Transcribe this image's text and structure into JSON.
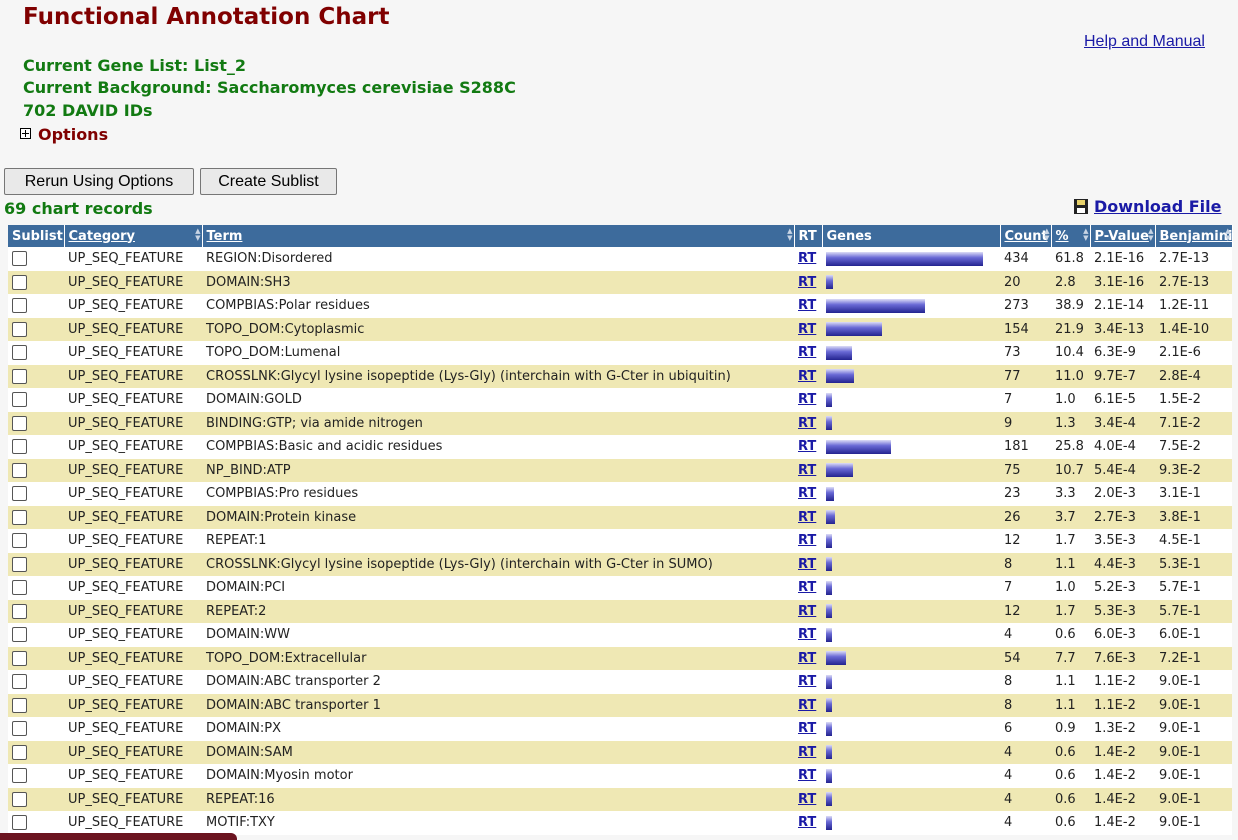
{
  "page": {
    "title": "Functional Annotation Chart",
    "help_link": "Help and Manual",
    "gene_list": "Current Gene List: List_2",
    "background": "Current Background: Saccharomyces cerevisiae S288C",
    "david_ids": "702 DAVID IDs",
    "options_label": "Options"
  },
  "toolbar": {
    "rerun_label": "Rerun Using Options",
    "sublist_label": "Create Sublist",
    "records_label": "69 chart records",
    "download_label": "Download File"
  },
  "table": {
    "headers": {
      "sublist": "Sublist",
      "category": "Category",
      "term": "Term",
      "rt": "RT",
      "genes": "Genes",
      "count": "Count",
      "percent": "%",
      "pvalue": "P-Value",
      "benjamini": "Benjamini"
    },
    "rows": [
      {
        "category": "UP_SEQ_FEATURE",
        "term": "REGION:Disordered",
        "rt": "RT",
        "count": "434",
        "percent": "61.8",
        "pvalue": "2.1E-16",
        "benjamini": "2.7E-13"
      },
      {
        "category": "UP_SEQ_FEATURE",
        "term": "DOMAIN:SH3",
        "rt": "RT",
        "count": "20",
        "percent": "2.8",
        "pvalue": "3.1E-16",
        "benjamini": "2.7E-13"
      },
      {
        "category": "UP_SEQ_FEATURE",
        "term": "COMPBIAS:Polar residues",
        "rt": "RT",
        "count": "273",
        "percent": "38.9",
        "pvalue": "2.1E-14",
        "benjamini": "1.2E-11"
      },
      {
        "category": "UP_SEQ_FEATURE",
        "term": "TOPO_DOM:Cytoplasmic",
        "rt": "RT",
        "count": "154",
        "percent": "21.9",
        "pvalue": "3.4E-13",
        "benjamini": "1.4E-10"
      },
      {
        "category": "UP_SEQ_FEATURE",
        "term": "TOPO_DOM:Lumenal",
        "rt": "RT",
        "count": "73",
        "percent": "10.4",
        "pvalue": "6.3E-9",
        "benjamini": "2.1E-6"
      },
      {
        "category": "UP_SEQ_FEATURE",
        "term": "CROSSLNK:Glycyl lysine isopeptide (Lys-Gly) (interchain with G-Cter in ubiquitin)",
        "rt": "RT",
        "count": "77",
        "percent": "11.0",
        "pvalue": "9.7E-7",
        "benjamini": "2.8E-4"
      },
      {
        "category": "UP_SEQ_FEATURE",
        "term": "DOMAIN:GOLD",
        "rt": "RT",
        "count": "7",
        "percent": "1.0",
        "pvalue": "6.1E-5",
        "benjamini": "1.5E-2"
      },
      {
        "category": "UP_SEQ_FEATURE",
        "term": "BINDING:GTP; via amide nitrogen",
        "rt": "RT",
        "count": "9",
        "percent": "1.3",
        "pvalue": "3.4E-4",
        "benjamini": "7.1E-2"
      },
      {
        "category": "UP_SEQ_FEATURE",
        "term": "COMPBIAS:Basic and acidic residues",
        "rt": "RT",
        "count": "181",
        "percent": "25.8",
        "pvalue": "4.0E-4",
        "benjamini": "7.5E-2"
      },
      {
        "category": "UP_SEQ_FEATURE",
        "term": "NP_BIND:ATP",
        "rt": "RT",
        "count": "75",
        "percent": "10.7",
        "pvalue": "5.4E-4",
        "benjamini": "9.3E-2"
      },
      {
        "category": "UP_SEQ_FEATURE",
        "term": "COMPBIAS:Pro residues",
        "rt": "RT",
        "count": "23",
        "percent": "3.3",
        "pvalue": "2.0E-3",
        "benjamini": "3.1E-1"
      },
      {
        "category": "UP_SEQ_FEATURE",
        "term": "DOMAIN:Protein kinase",
        "rt": "RT",
        "count": "26",
        "percent": "3.7",
        "pvalue": "2.7E-3",
        "benjamini": "3.8E-1"
      },
      {
        "category": "UP_SEQ_FEATURE",
        "term": "REPEAT:1",
        "rt": "RT",
        "count": "12",
        "percent": "1.7",
        "pvalue": "3.5E-3",
        "benjamini": "4.5E-1"
      },
      {
        "category": "UP_SEQ_FEATURE",
        "term": "CROSSLNK:Glycyl lysine isopeptide (Lys-Gly) (interchain with G-Cter in SUMO)",
        "rt": "RT",
        "count": "8",
        "percent": "1.1",
        "pvalue": "4.4E-3",
        "benjamini": "5.3E-1"
      },
      {
        "category": "UP_SEQ_FEATURE",
        "term": "DOMAIN:PCI",
        "rt": "RT",
        "count": "7",
        "percent": "1.0",
        "pvalue": "5.2E-3",
        "benjamini": "5.7E-1"
      },
      {
        "category": "UP_SEQ_FEATURE",
        "term": "REPEAT:2",
        "rt": "RT",
        "count": "12",
        "percent": "1.7",
        "pvalue": "5.3E-3",
        "benjamini": "5.7E-1"
      },
      {
        "category": "UP_SEQ_FEATURE",
        "term": "DOMAIN:WW",
        "rt": "RT",
        "count": "4",
        "percent": "0.6",
        "pvalue": "6.0E-3",
        "benjamini": "6.0E-1"
      },
      {
        "category": "UP_SEQ_FEATURE",
        "term": "TOPO_DOM:Extracellular",
        "rt": "RT",
        "count": "54",
        "percent": "7.7",
        "pvalue": "7.6E-3",
        "benjamini": "7.2E-1"
      },
      {
        "category": "UP_SEQ_FEATURE",
        "term": "DOMAIN:ABC transporter 2",
        "rt": "RT",
        "count": "8",
        "percent": "1.1",
        "pvalue": "1.1E-2",
        "benjamini": "9.0E-1"
      },
      {
        "category": "UP_SEQ_FEATURE",
        "term": "DOMAIN:ABC transporter 1",
        "rt": "RT",
        "count": "8",
        "percent": "1.1",
        "pvalue": "1.1E-2",
        "benjamini": "9.0E-1"
      },
      {
        "category": "UP_SEQ_FEATURE",
        "term": "DOMAIN:PX",
        "rt": "RT",
        "count": "6",
        "percent": "0.9",
        "pvalue": "1.3E-2",
        "benjamini": "9.0E-1"
      },
      {
        "category": "UP_SEQ_FEATURE",
        "term": "DOMAIN:SAM",
        "rt": "RT",
        "count": "4",
        "percent": "0.6",
        "pvalue": "1.4E-2",
        "benjamini": "9.0E-1"
      },
      {
        "category": "UP_SEQ_FEATURE",
        "term": "DOMAIN:Myosin motor",
        "rt": "RT",
        "count": "4",
        "percent": "0.6",
        "pvalue": "1.4E-2",
        "benjamini": "9.0E-1"
      },
      {
        "category": "UP_SEQ_FEATURE",
        "term": "REPEAT:16",
        "rt": "RT",
        "count": "4",
        "percent": "0.6",
        "pvalue": "1.4E-2",
        "benjamini": "9.0E-1"
      },
      {
        "category": "UP_SEQ_FEATURE",
        "term": "MOTIF:TXY",
        "rt": "RT",
        "count": "4",
        "percent": "0.6",
        "pvalue": "1.4E-2",
        "benjamini": "9.0E-1"
      }
    ]
  },
  "icons": {
    "options_toggle": "plus-box-icon",
    "download": "floppy-disk-icon",
    "sort": "sort-arrows-icon"
  },
  "colors": {
    "title": "#800000",
    "info": "#127a12",
    "header_bg": "#3d6b9c",
    "row_alt": "#efe8b4",
    "link": "#1a1aa6"
  }
}
